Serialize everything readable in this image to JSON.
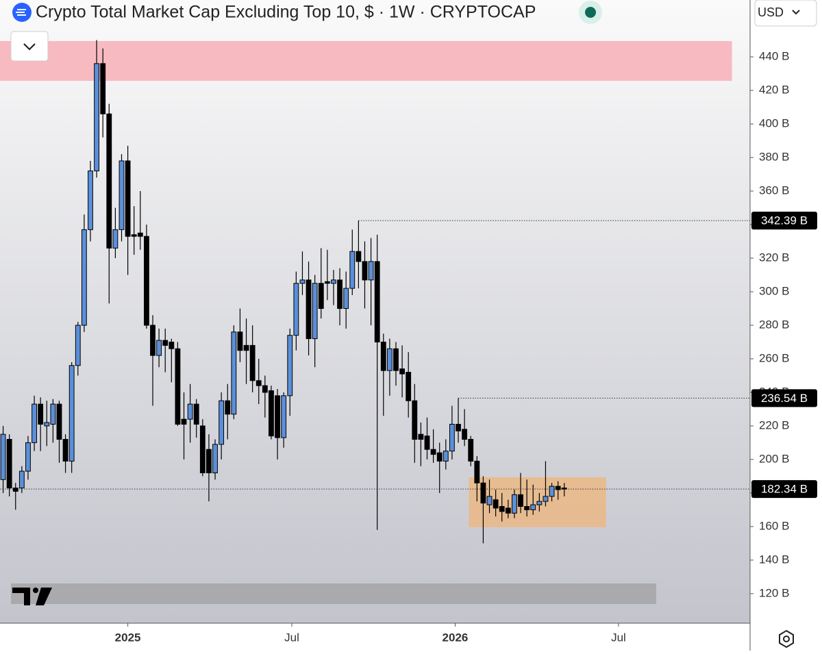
{
  "chart_data": {
    "type": "candlestick",
    "title": "Crypto Total Market Cap Excluding Top 10, $ · 1W · CRYPTOCAP",
    "currency": "USD",
    "up_color": "#5b8fd9",
    "down_color": "#000000",
    "candles": {
      "open": [
        188,
        212,
        183,
        183,
        193,
        210,
        233,
        220,
        221,
        233,
        212,
        199,
        256,
        280,
        337,
        372,
        436,
        406,
        326,
        337,
        378,
        334,
        335,
        333,
        280,
        262,
        271,
        270,
        266,
        224,
        224,
        233,
        220,
        206,
        192,
        209,
        235,
        227,
        276,
        268,
        268,
        247,
        244,
        241,
        238,
        213,
        238,
        274,
        305,
        307,
        272,
        305,
        306,
        305,
        307,
        290,
        302,
        324,
        318,
        307,
        318,
        270,
        253,
        266,
        254,
        252,
        235,
        215,
        214,
        206,
        204,
        199,
        205,
        221,
        218,
        212,
        199,
        186,
        173,
        176,
        172,
        171,
        168,
        179,
        172,
        170,
        173,
        175,
        178,
        184,
        183
      ],
      "high": [
        220,
        215,
        186,
        196,
        214,
        238,
        237,
        235,
        236,
        235,
        215,
        258,
        282,
        346,
        378,
        450,
        445,
        412,
        350,
        382,
        387,
        351,
        360,
        340,
        286,
        278,
        278,
        272,
        270,
        240,
        245,
        236,
        224,
        215,
        212,
        240,
        245,
        280,
        290,
        284,
        280,
        260,
        250,
        244,
        242,
        240,
        278,
        312,
        324,
        318,
        310,
        326,
        325,
        313,
        314,
        312,
        337,
        342.39,
        330,
        332,
        334,
        275,
        272,
        270,
        268,
        264,
        245,
        222,
        225,
        218,
        210,
        212,
        232,
        236.54,
        230,
        214,
        202,
        190,
        188,
        182,
        180,
        176,
        182,
        192,
        188,
        185,
        180,
        199,
        186,
        187,
        186
      ],
      "low": [
        180,
        178,
        170,
        180,
        188,
        205,
        205,
        208,
        210,
        198,
        192,
        192,
        250,
        276,
        330,
        368,
        392,
        293,
        320,
        330,
        310,
        322,
        325,
        278,
        232,
        255,
        252,
        246,
        220,
        200,
        210,
        213,
        190,
        175,
        188,
        200,
        212,
        224,
        258,
        245,
        240,
        233,
        225,
        212,
        200,
        207,
        226,
        265,
        298,
        262,
        255,
        284,
        295,
        292,
        280,
        278,
        298,
        302,
        290,
        280,
        158,
        226,
        238,
        244,
        237,
        225,
        198,
        196,
        200,
        198,
        180,
        194,
        200,
        210,
        208,
        196,
        175,
        150,
        168,
        166,
        163,
        165,
        165,
        168,
        166,
        167,
        169,
        172,
        175,
        176,
        178
      ],
      "close": [
        215,
        183,
        181,
        193,
        210,
        233,
        221,
        222,
        233,
        212,
        199,
        256,
        280,
        337,
        372,
        436,
        406,
        326,
        337,
        378,
        333,
        333,
        333,
        280,
        262,
        271,
        268,
        266,
        221,
        221,
        233,
        221,
        192,
        192,
        209,
        235,
        227,
        276,
        265,
        265,
        247,
        244,
        240,
        214,
        213,
        238,
        274,
        305,
        307,
        272,
        305,
        290,
        305,
        307,
        290,
        302,
        324,
        318,
        307,
        318,
        270,
        253,
        266,
        253,
        251,
        235,
        212,
        212,
        206,
        203,
        199,
        205,
        221,
        217,
        212,
        199,
        186,
        174,
        178,
        171,
        169,
        168,
        179,
        172,
        170,
        173,
        175,
        178,
        184,
        182,
        182.34
      ]
    },
    "xlim": [
      -0.5,
      119.8
    ],
    "xticks": [
      {
        "value": 20,
        "label": "2025"
      },
      {
        "value": 46.3,
        "label": "Jul"
      },
      {
        "value": 72.5,
        "label": "2026"
      },
      {
        "value": 98.7,
        "label": "Jul"
      }
    ],
    "ylim": [
      102.4,
      473.9
    ],
    "yticks": [
      {
        "value": 120,
        "label": "120 B"
      },
      {
        "value": 140,
        "label": "140 B"
      },
      {
        "value": 160,
        "label": "160 B"
      },
      {
        "value": 180,
        "label": "180 B"
      },
      {
        "value": 200,
        "label": "200 B"
      },
      {
        "value": 220,
        "label": "220 B"
      },
      {
        "value": 240,
        "label": "240 B"
      },
      {
        "value": 260,
        "label": "260 B"
      },
      {
        "value": 280,
        "label": "280 B"
      },
      {
        "value": 300,
        "label": "300 B"
      },
      {
        "value": 320,
        "label": "320 B"
      },
      {
        "value": 340,
        "label": "340 B"
      },
      {
        "value": 360,
        "label": "360 B"
      },
      {
        "value": 380,
        "label": "380 B"
      },
      {
        "value": 400,
        "label": "400 B"
      },
      {
        "value": 420,
        "label": "420 B"
      },
      {
        "value": 440,
        "label": "440 B"
      }
    ],
    "price_lines": [
      {
        "value": 342.39,
        "label": "342.39 B",
        "from": 57
      },
      {
        "value": 236.54,
        "label": "236.54 B",
        "from": 73
      },
      {
        "value": 182.34,
        "label": "182.34 B",
        "from": -0.5
      }
    ],
    "zones": [
      {
        "range": [
          425.7,
          449.4
        ],
        "x": [
          -0.5,
          116.9
        ],
        "color": "#f7b4bb"
      },
      {
        "range": [
          159.6,
          189.4
        ],
        "x": [
          74.7,
          96.7
        ],
        "color": "#e9b98a"
      }
    ]
  }
}
